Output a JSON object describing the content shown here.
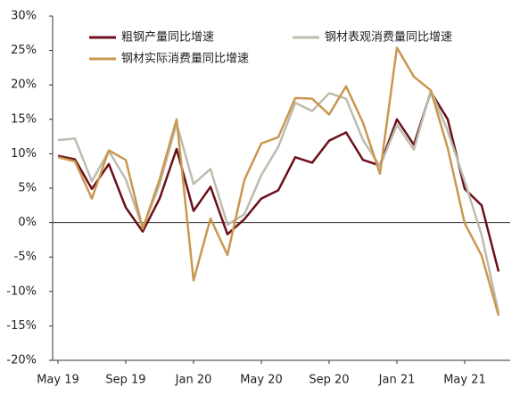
{
  "chart_data": {
    "type": "line",
    "categories": [
      "May 19",
      null,
      null,
      null,
      "Sep 19",
      null,
      null,
      null,
      "Jan 20",
      null,
      null,
      null,
      "May 20",
      null,
      null,
      null,
      "Sep 20",
      null,
      null,
      null,
      "Jan 21",
      null,
      null,
      null,
      "May 21",
      null,
      null
    ],
    "series": [
      {
        "name": "粗钢产量同比增速",
        "color": "#6b0f1a",
        "values": [
          9.7,
          9.2,
          4.9,
          8.5,
          2.2,
          -1.3,
          3.5,
          10.7,
          1.7,
          5.2,
          -1.7,
          0.5,
          3.5,
          4.7,
          9.5,
          8.7,
          11.9,
          13.1,
          9.1,
          8.3,
          15.0,
          11.3,
          19.0,
          15.0,
          4.9,
          2.5,
          -7.1
        ]
      },
      {
        "name": "钢材表观消费量同比增速",
        "color": "#bcbcae",
        "values": [
          12.0,
          12.2,
          6.0,
          10.4,
          6.3,
          -0.8,
          5.6,
          14.4,
          5.6,
          7.8,
          -0.3,
          1.2,
          6.9,
          11.0,
          17.4,
          16.2,
          18.8,
          18.0,
          12.0,
          8.2,
          14.2,
          10.6,
          19.2,
          13.3,
          6.0,
          -1.8,
          -13.1
        ]
      },
      {
        "name": "钢材实际消费量同比增速",
        "color": "#c9974f",
        "values": [
          9.5,
          8.9,
          3.5,
          10.5,
          9.1,
          -0.9,
          6.3,
          15.0,
          -8.4,
          0.6,
          -4.7,
          6.2,
          11.5,
          12.4,
          18.1,
          18.0,
          15.7,
          19.8,
          14.5,
          7.1,
          25.4,
          21.2,
          19.2,
          10.8,
          -0.1,
          -4.8,
          -13.5
        ]
      }
    ],
    "ylim": [
      -20,
      30
    ],
    "yticks": [
      {
        "value": -20,
        "label": "-20%"
      },
      {
        "value": -15,
        "label": "-15%"
      },
      {
        "value": -10,
        "label": "-10%"
      },
      {
        "value": -5,
        "label": "-5%"
      },
      {
        "value": 0,
        "label": "0%"
      },
      {
        "value": 5,
        "label": "5%"
      },
      {
        "value": 10,
        "label": "10%"
      },
      {
        "value": 15,
        "label": "15%"
      },
      {
        "value": 20,
        "label": "20%"
      },
      {
        "value": 25,
        "label": "25%"
      },
      {
        "value": 30,
        "label": "30%"
      }
    ]
  }
}
